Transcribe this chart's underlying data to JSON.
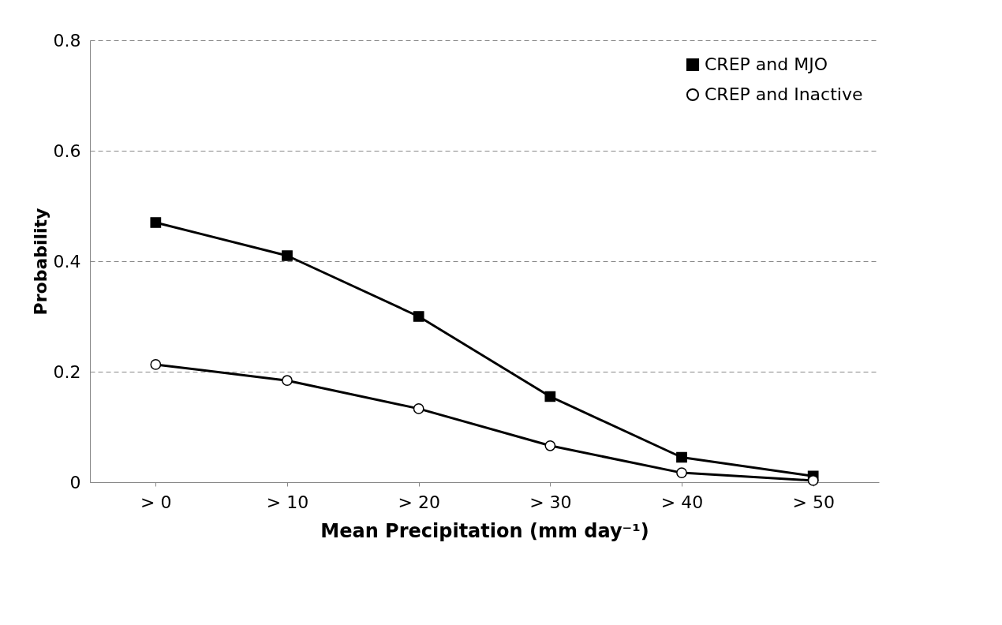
{
  "chart_data": {
    "type": "line",
    "xlabel": "Mean Precipitation (mm day⁻¹)",
    "ylabel": "Probability",
    "categories": [
      "> 0",
      "> 10",
      "> 20",
      "> 30",
      "> 40",
      "> 50"
    ],
    "series": [
      {
        "name": "CREP and MJO",
        "color": "#000000",
        "marker": "square",
        "values": [
          0.47,
          0.41,
          0.3,
          0.155,
          0.045,
          0.011
        ]
      },
      {
        "name": "CREP and Inactive",
        "color": "#000000",
        "marker": "circle",
        "values": [
          0.213,
          0.184,
          0.133,
          0.066,
          0.017,
          0.003
        ]
      }
    ],
    "ylim": [
      0,
      0.8
    ],
    "yticks": [
      0,
      0.2,
      0.4,
      0.6,
      0.8
    ],
    "grid": "y",
    "legend": "top right",
    "line_style": "solid"
  }
}
